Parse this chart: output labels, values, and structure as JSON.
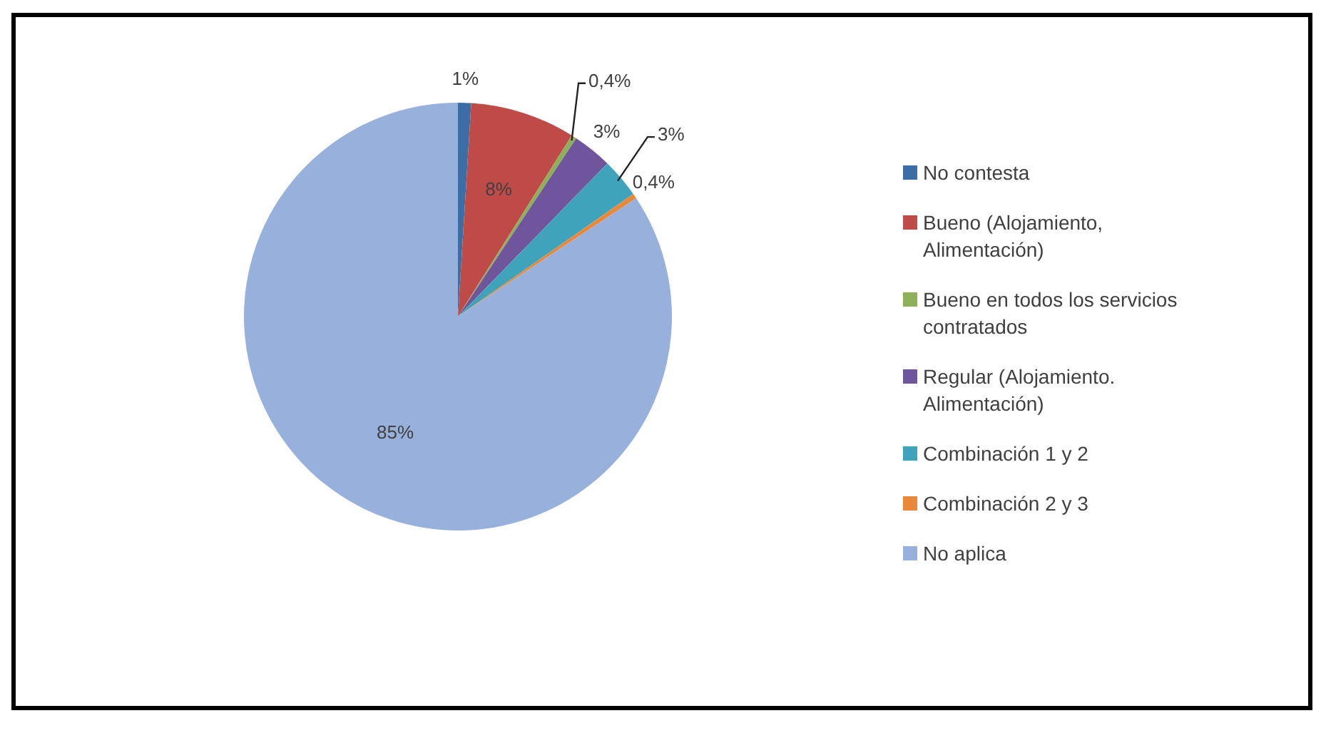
{
  "chart_data": {
    "type": "pie",
    "categories": [
      "No contesta",
      "Bueno (Alojamiento, Alimentación)",
      "Bueno en todos los servicios contratados",
      "Regular (Alojamiento. Alimentación)",
      "Combinación 1 y 2",
      "Combinación 2 y 3",
      "No aplica"
    ],
    "values": [
      1,
      8,
      0.4,
      3,
      3,
      0.4,
      85
    ],
    "colors": [
      "#3b6ea5",
      "#be4b48",
      "#8fb05a",
      "#6f559b",
      "#3fa3bb",
      "#e8883a",
      "#98b0dc"
    ],
    "value_labels": [
      "1%",
      "8%",
      "0,4%",
      "3%",
      "3%",
      "0,4%",
      "85%"
    ],
    "legend": "right"
  }
}
